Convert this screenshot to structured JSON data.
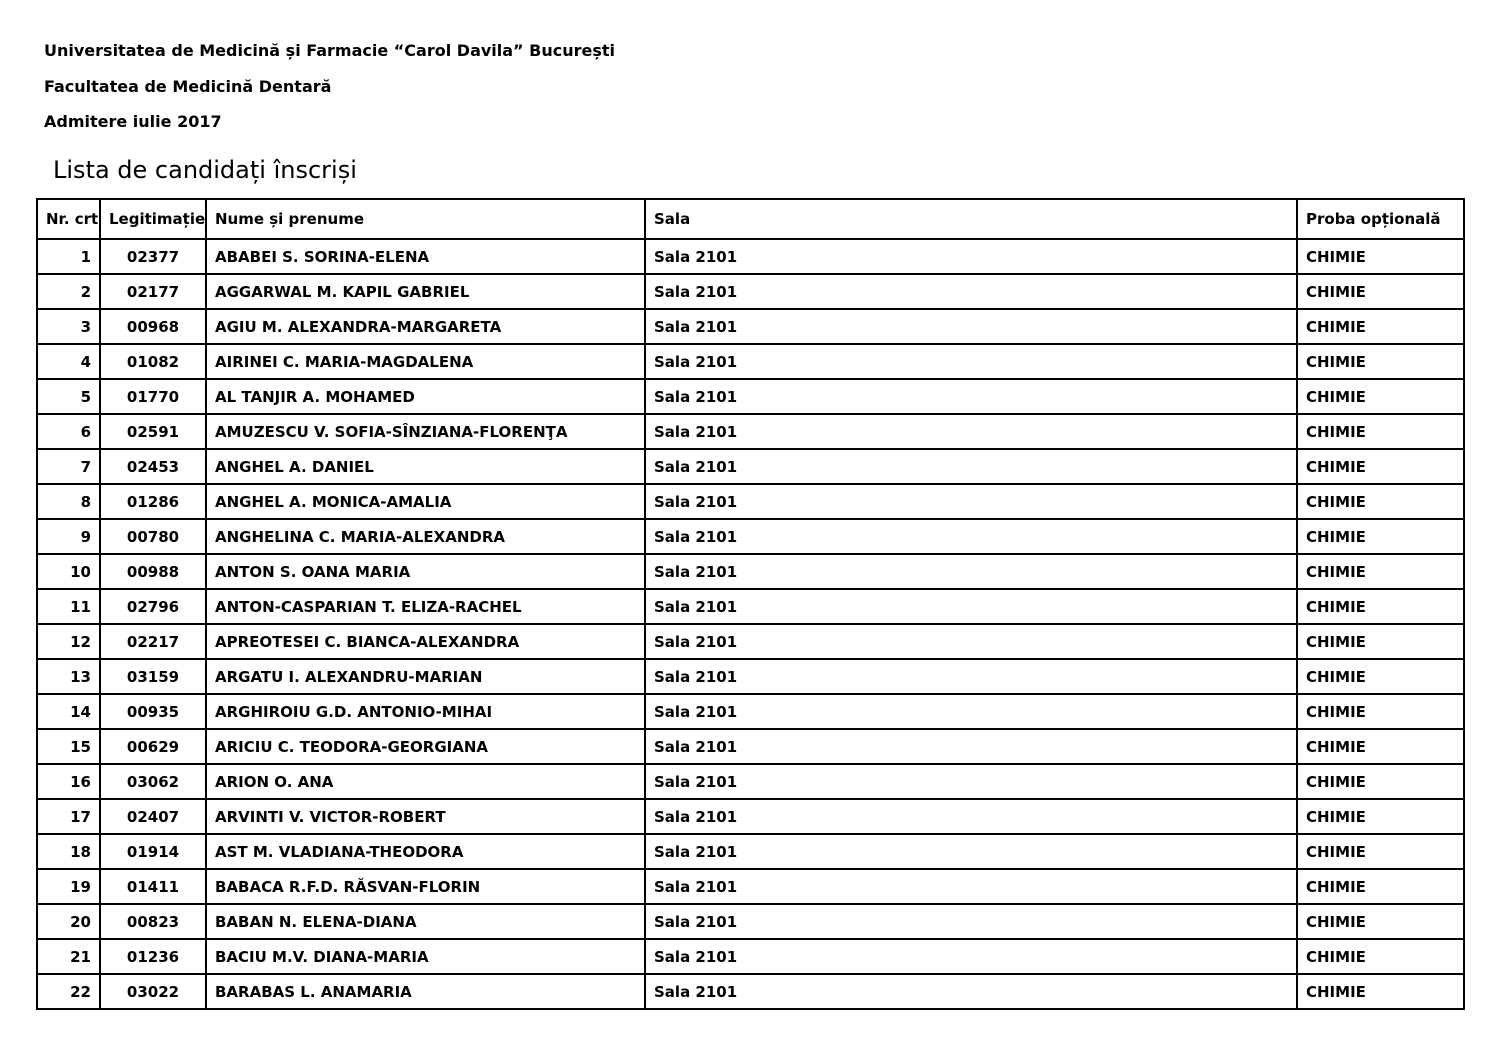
{
  "doc": {
    "university": "Universitatea de Medicină și Farmacie “Carol Davila” București",
    "faculty": "Facultatea de Medicină Dentară",
    "session": "Admitere iulie 2017",
    "title": "Lista de candidați înscriși"
  },
  "table": {
    "columns": [
      {
        "key": "nr",
        "label": "Nr. crt"
      },
      {
        "key": "legitimatie",
        "label": "Legitimație"
      },
      {
        "key": "nume",
        "label": "Nume și prenume"
      },
      {
        "key": "sala",
        "label": "Sala"
      },
      {
        "key": "proba",
        "label": "Proba opțională"
      }
    ],
    "rows": [
      {
        "nr": "1",
        "legitimatie": "02377",
        "nume": "ABABEI S. SORINA-ELENA",
        "sala": "Sala 2101",
        "proba": "CHIMIE"
      },
      {
        "nr": "2",
        "legitimatie": "02177",
        "nume": "AGGARWAL M. KAPIL GABRIEL",
        "sala": "Sala 2101",
        "proba": "CHIMIE"
      },
      {
        "nr": "3",
        "legitimatie": "00968",
        "nume": "AGIU M. ALEXANDRA-MARGARETA",
        "sala": "Sala 2101",
        "proba": "CHIMIE"
      },
      {
        "nr": "4",
        "legitimatie": "01082",
        "nume": "AIRINEI C. MARIA-MAGDALENA",
        "sala": "Sala 2101",
        "proba": "CHIMIE"
      },
      {
        "nr": "5",
        "legitimatie": "01770",
        "nume": "AL TANJIR A. MOHAMED",
        "sala": "Sala 2101",
        "proba": "CHIMIE"
      },
      {
        "nr": "6",
        "legitimatie": "02591",
        "nume": "AMUZESCU V. SOFIA-SÎNZIANA-FLORENŢA",
        "sala": "Sala 2101",
        "proba": "CHIMIE"
      },
      {
        "nr": "7",
        "legitimatie": "02453",
        "nume": "ANGHEL A. DANIEL",
        "sala": "Sala 2101",
        "proba": "CHIMIE"
      },
      {
        "nr": "8",
        "legitimatie": "01286",
        "nume": "ANGHEL A. MONICA-AMALIA",
        "sala": "Sala 2101",
        "proba": "CHIMIE"
      },
      {
        "nr": "9",
        "legitimatie": "00780",
        "nume": "ANGHELINA C. MARIA-ALEXANDRA",
        "sala": "Sala 2101",
        "proba": "CHIMIE"
      },
      {
        "nr": "10",
        "legitimatie": "00988",
        "nume": "ANTON S. OANA MARIA",
        "sala": "Sala 2101",
        "proba": "CHIMIE"
      },
      {
        "nr": "11",
        "legitimatie": "02796",
        "nume": "ANTON-CASPARIAN T. ELIZA-RACHEL",
        "sala": "Sala 2101",
        "proba": "CHIMIE"
      },
      {
        "nr": "12",
        "legitimatie": "02217",
        "nume": "APREOTESEI C. BIANCA-ALEXANDRA",
        "sala": "Sala 2101",
        "proba": "CHIMIE"
      },
      {
        "nr": "13",
        "legitimatie": "03159",
        "nume": "ARGATU I. ALEXANDRU-MARIAN",
        "sala": "Sala 2101",
        "proba": "CHIMIE"
      },
      {
        "nr": "14",
        "legitimatie": "00935",
        "nume": "ARGHIROIU G.D. ANTONIO-MIHAI",
        "sala": "Sala 2101",
        "proba": "CHIMIE"
      },
      {
        "nr": "15",
        "legitimatie": "00629",
        "nume": "ARICIU C. TEODORA-GEORGIANA",
        "sala": "Sala 2101",
        "proba": "CHIMIE"
      },
      {
        "nr": "16",
        "legitimatie": "03062",
        "nume": "ARION O. ANA",
        "sala": "Sala 2101",
        "proba": "CHIMIE"
      },
      {
        "nr": "17",
        "legitimatie": "02407",
        "nume": "ARVINTI V. VICTOR-ROBERT",
        "sala": "Sala 2101",
        "proba": "CHIMIE"
      },
      {
        "nr": "18",
        "legitimatie": "01914",
        "nume": "AST M. VLADIANA-THEODORA",
        "sala": "Sala 2101",
        "proba": "CHIMIE"
      },
      {
        "nr": "19",
        "legitimatie": "01411",
        "nume": "BABACA R.F.D. RĂSVAN-FLORIN",
        "sala": "Sala 2101",
        "proba": "CHIMIE"
      },
      {
        "nr": "20",
        "legitimatie": "00823",
        "nume": "BABAN N. ELENA-DIANA",
        "sala": "Sala 2101",
        "proba": "CHIMIE"
      },
      {
        "nr": "21",
        "legitimatie": "01236",
        "nume": "BACIU M.V. DIANA-MARIA",
        "sala": "Sala 2101",
        "proba": "CHIMIE"
      },
      {
        "nr": "22",
        "legitimatie": "03022",
        "nume": "BARABAS L. ANAMARIA",
        "sala": "Sala 2101",
        "proba": "CHIMIE"
      }
    ]
  }
}
